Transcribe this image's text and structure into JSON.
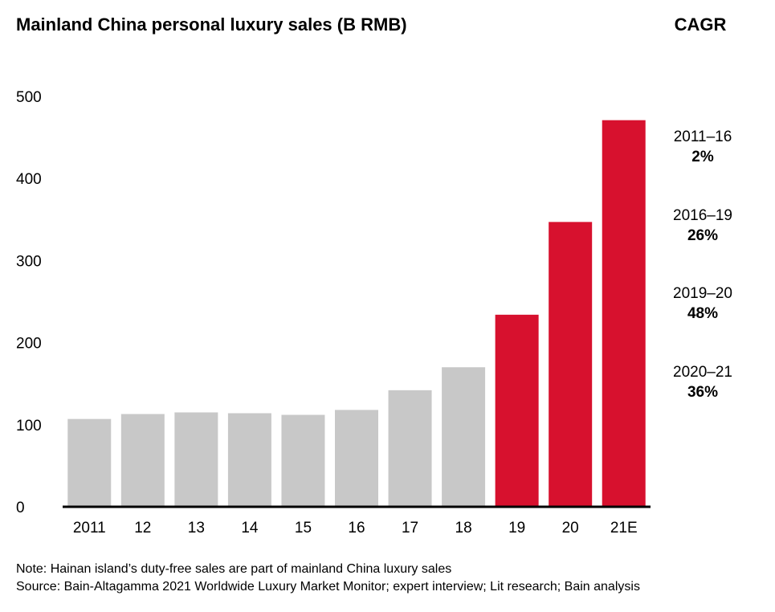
{
  "chart_data": {
    "type": "bar",
    "title": "Mainland China personal luxury sales (B RMB)",
    "categories": [
      "2011",
      "12",
      "13",
      "14",
      "15",
      "16",
      "17",
      "18",
      "19",
      "20",
      "21E"
    ],
    "values": [
      107,
      113,
      115,
      114,
      112,
      118,
      142,
      170,
      234,
      347,
      471
    ],
    "highlight_from_index": 8,
    "ylim": [
      0,
      500
    ],
    "yticks": [
      0,
      100,
      200,
      300,
      400,
      500
    ],
    "xlabel": "",
    "ylabel": "",
    "colors": {
      "base": "#c8c8c8",
      "highlight": "#d7112e",
      "axis": "#000000"
    }
  },
  "cagr": {
    "title": "CAGR",
    "items": [
      {
        "period": "2011–16",
        "value": "2%"
      },
      {
        "period": "2016–19",
        "value": "26%"
      },
      {
        "period": "2019–20",
        "value": "48%"
      },
      {
        "period": "2020–21",
        "value": "36%"
      }
    ]
  },
  "footer": {
    "note": "Note: Hainan island’s duty-free sales are part of mainland China luxury sales",
    "source": "Source: Bain-Altagamma 2021 Worldwide Luxury Market Monitor; expert interview; Lit research; Bain analysis"
  }
}
